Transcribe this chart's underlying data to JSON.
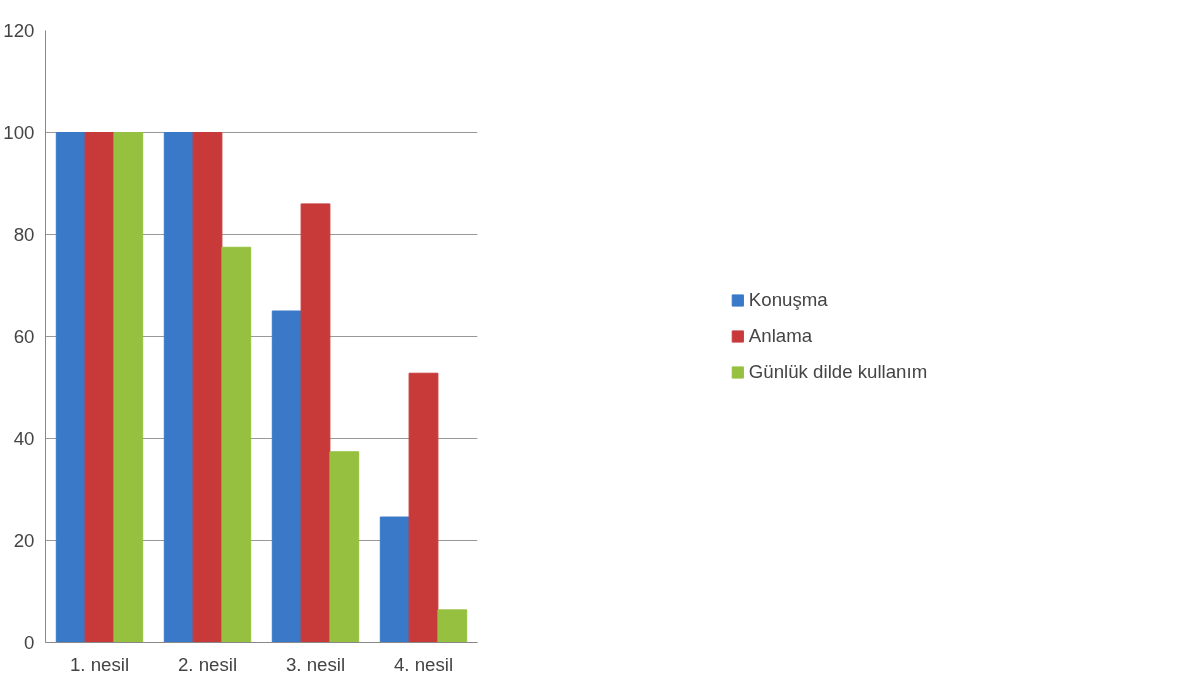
{
  "chart_data": {
    "type": "bar",
    "categories": [
      "1. nesil",
      "2. nesil",
      "3. nesil",
      "4. nesil"
    ],
    "series": [
      {
        "name": "Konuşma",
        "color": "#3a78c8",
        "values": [
          100,
          100,
          65,
          24.6
        ]
      },
      {
        "name": "Anlama",
        "color": "#c83a3a",
        "values": [
          100,
          100,
          86,
          52.8
        ]
      },
      {
        "name": "Günlük dilde kullanım",
        "color": "#96c040",
        "values": [
          100,
          77.5,
          37.4,
          6.4
        ]
      }
    ],
    "ylim": [
      0,
      120
    ],
    "yticks": [
      0,
      20,
      40,
      60,
      80,
      100,
      120
    ],
    "grid": "y",
    "legend": "right"
  }
}
